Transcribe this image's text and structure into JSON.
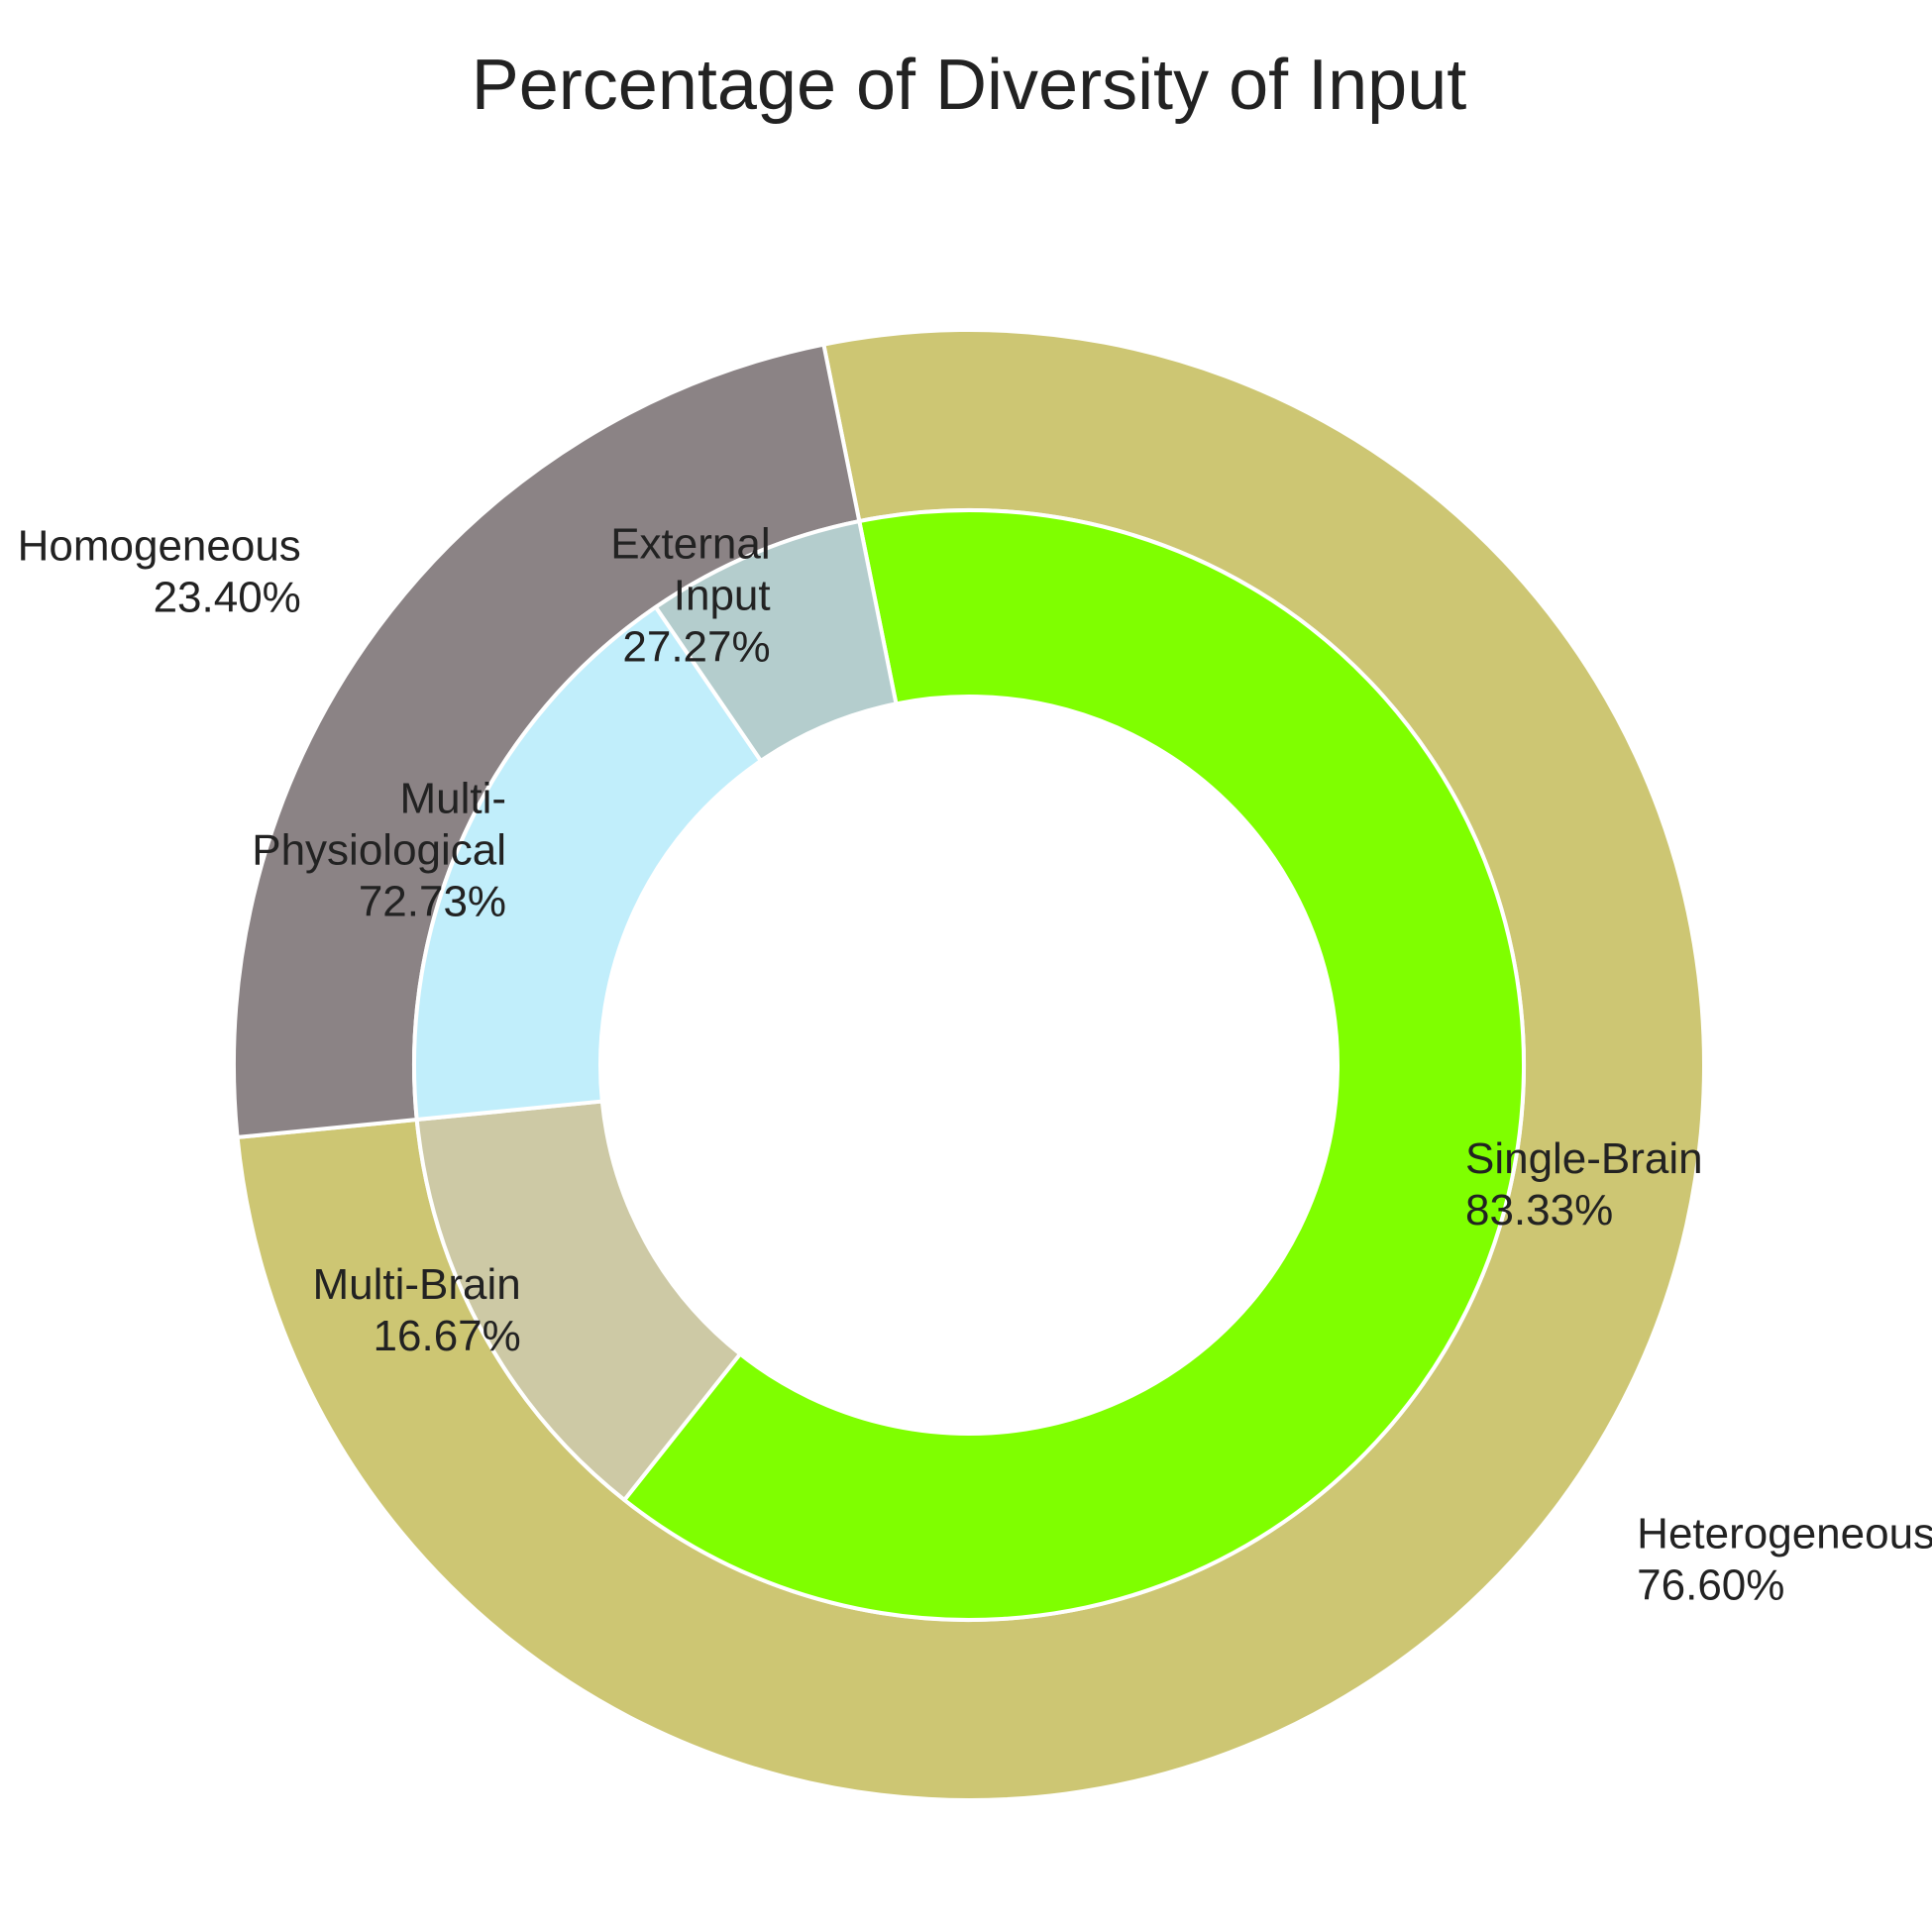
{
  "chart_data": {
    "type": "pie",
    "title": "Percentage of Diversity of Input",
    "style": "nested donut",
    "outer_ring": [
      {
        "label": "Heterogeneous",
        "value": 76.6,
        "display": "76.60%",
        "color": "#cdc673"
      },
      {
        "label": "Homogeneous",
        "value": 23.4,
        "display": "23.40%",
        "color": "#8b8385"
      }
    ],
    "inner_ring": [
      {
        "label": "Single-Brain",
        "parent": "Heterogeneous",
        "value": 83.33,
        "display": "83.33%",
        "color": "#7fff00"
      },
      {
        "label": "Multi-Brain",
        "parent": "Heterogeneous",
        "value": 16.67,
        "display": "16.67%",
        "color": "#cdc9a5"
      },
      {
        "label": "Multi-Physiological",
        "label_lines": [
          "Multi-",
          "Physiological"
        ],
        "parent": "Homogeneous",
        "value": 72.73,
        "display": "72.73%",
        "color": "#c1eefb"
      },
      {
        "label": "External Input",
        "label_lines": [
          "External",
          "Input"
        ],
        "parent": "Homogeneous",
        "value": 27.27,
        "display": "27.27%",
        "color": "#b4cdcd"
      }
    ],
    "separator_color": "#ffffff"
  }
}
